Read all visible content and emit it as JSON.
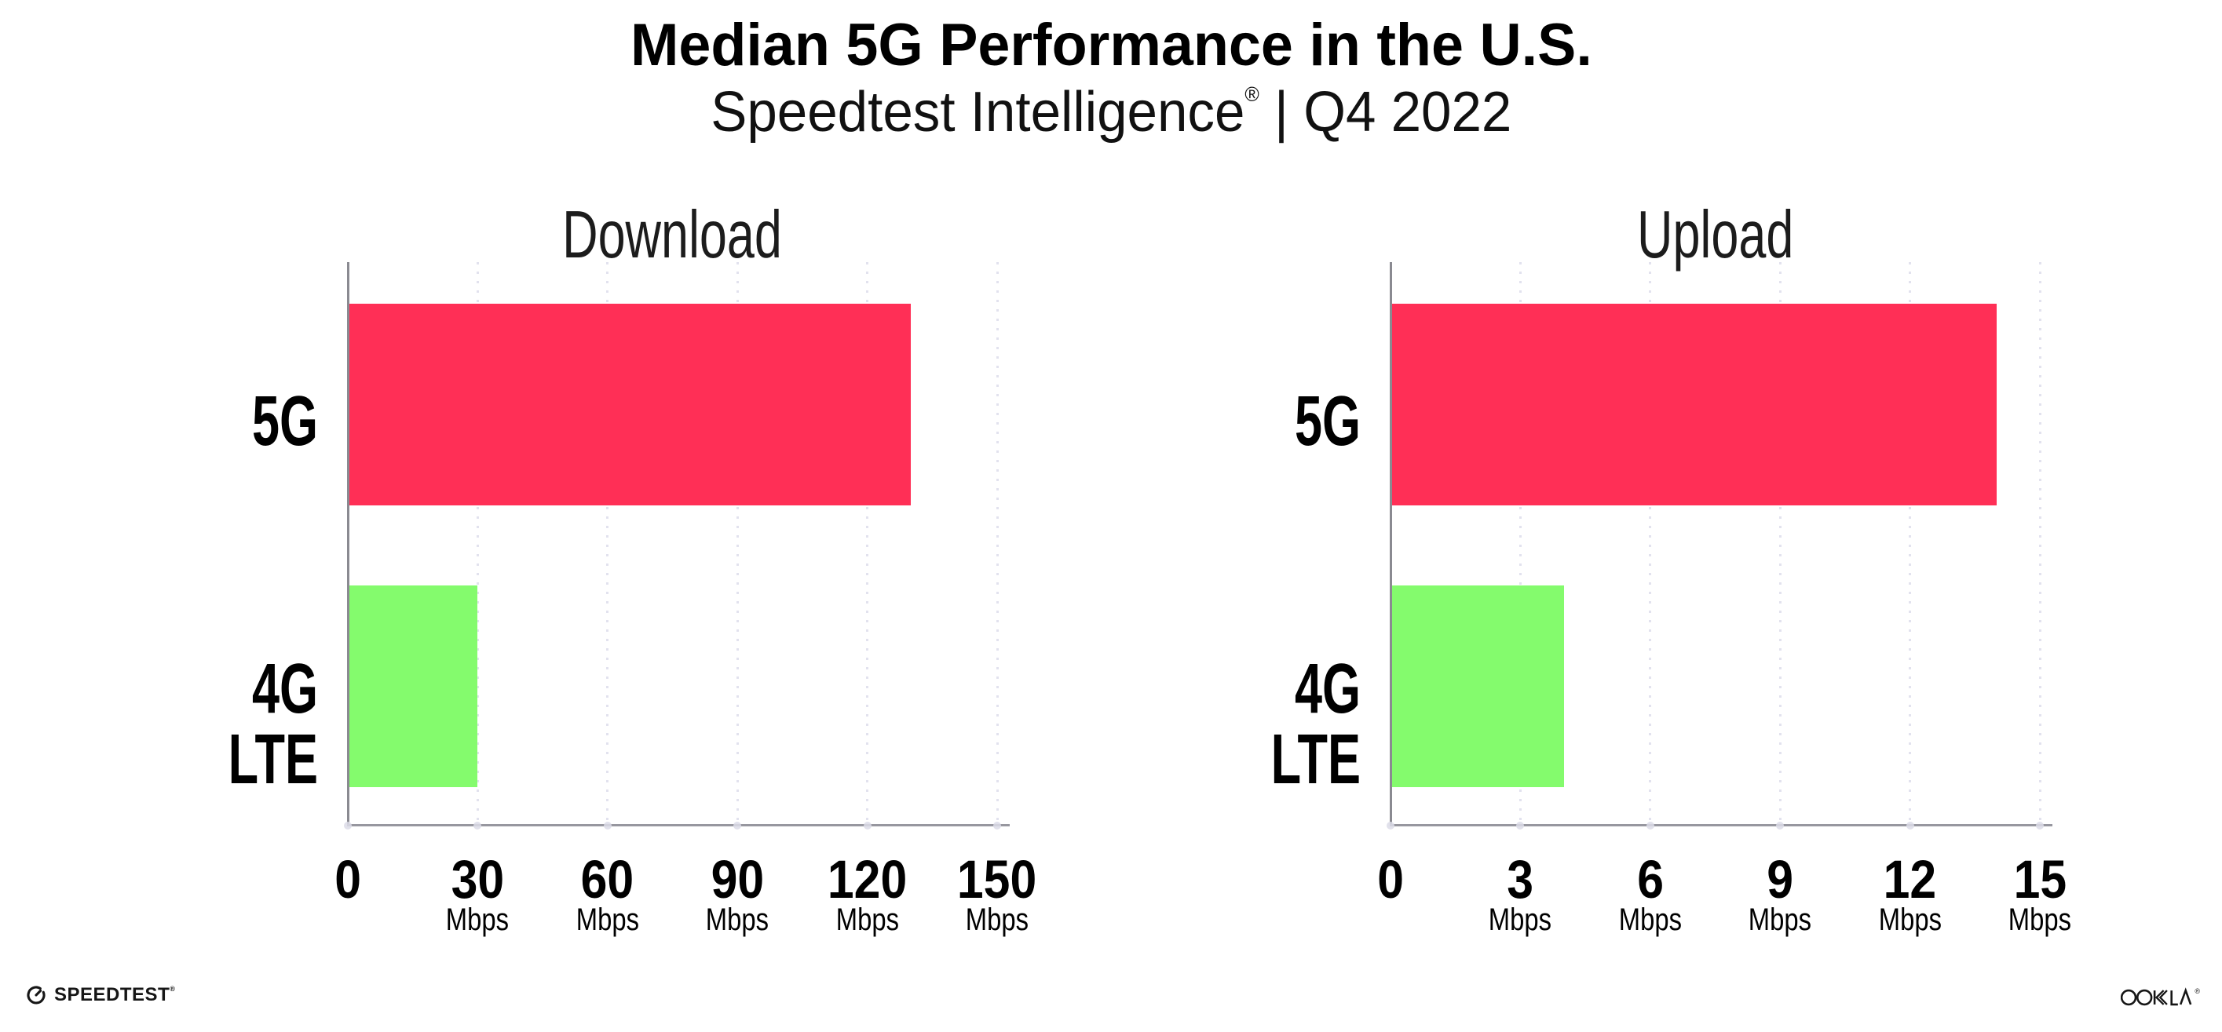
{
  "header": {
    "title": "Median 5G Performance in the U.S.",
    "subtitle_brand": "Speedtest Intelligence",
    "subtitle_reg": "®",
    "subtitle_sep": " | ",
    "subtitle_period": "Q4 2022"
  },
  "chart_data": [
    {
      "type": "bar",
      "orientation": "horizontal",
      "title": "Download",
      "categories": [
        "5G",
        "4G LTE"
      ],
      "values": [
        130,
        30
      ],
      "unit": "Mbps",
      "xlabel": "",
      "ylabel": "",
      "xlim": [
        0,
        150
      ],
      "xticks": [
        0,
        30,
        60,
        90,
        120,
        150
      ],
      "xtick_units": [
        "",
        "Mbps",
        "Mbps",
        "Mbps",
        "Mbps",
        "Mbps"
      ],
      "bar_colors": [
        "#FF2F56",
        "#84FB6D"
      ],
      "grid": "dotted-vertical",
      "legend": "none",
      "value_labels_shown": false
    },
    {
      "type": "bar",
      "orientation": "horizontal",
      "title": "Upload",
      "categories": [
        "5G",
        "4G LTE"
      ],
      "values": [
        14,
        4
      ],
      "unit": "Mbps",
      "xlabel": "",
      "ylabel": "",
      "xlim": [
        0,
        15
      ],
      "xticks": [
        0,
        3,
        6,
        9,
        12,
        15
      ],
      "xtick_units": [
        "",
        "Mbps",
        "Mbps",
        "Mbps",
        "Mbps",
        "Mbps"
      ],
      "bar_colors": [
        "#FF2F56",
        "#84FB6D"
      ],
      "grid": "dotted-vertical",
      "legend": "none",
      "value_labels_shown": false
    }
  ],
  "footer": {
    "speedtest_label": "SPEEDTEST",
    "speedtest_reg": "®",
    "ookla_label": "OOKLA",
    "ookla_reg": "®"
  },
  "colors": {
    "bar_5g": "#FF2F56",
    "bar_4g": "#84FB6D",
    "grid_dot": "#E2E2EE",
    "axis_x": "#97979F",
    "axis_y": "#8A8A91",
    "text": "#0B0B0B"
  }
}
